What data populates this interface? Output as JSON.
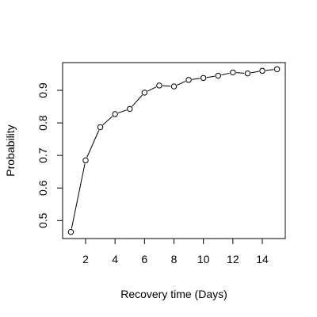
{
  "chart_data": {
    "type": "line",
    "xlabel": "Recovery time (Days)",
    "ylabel": "Probability",
    "x": [
      1,
      2,
      3,
      4,
      5,
      6,
      7,
      8,
      9,
      10,
      11,
      12,
      13,
      14,
      15
    ],
    "y": [
      0.465,
      0.685,
      0.787,
      0.827,
      0.843,
      0.893,
      0.915,
      0.912,
      0.932,
      0.938,
      0.945,
      0.955,
      0.952,
      0.96,
      0.965
    ],
    "xlim": [
      0.44,
      15.56
    ],
    "ylim": [
      0.4448,
      0.9852
    ],
    "xticks": [
      2,
      4,
      6,
      8,
      10,
      12,
      14
    ],
    "yticks": [
      0.5,
      0.6,
      0.7,
      0.8,
      0.9
    ],
    "xtick_labels": [
      "2",
      "4",
      "6",
      "8",
      "10",
      "12",
      "14"
    ],
    "ytick_labels": [
      "0.5",
      "0.6",
      "0.7",
      "0.8",
      "0.9"
    ],
    "marker": "open-circle",
    "grid": false,
    "legend": "none",
    "line_color": "#000000",
    "marker_color": "#000000"
  }
}
